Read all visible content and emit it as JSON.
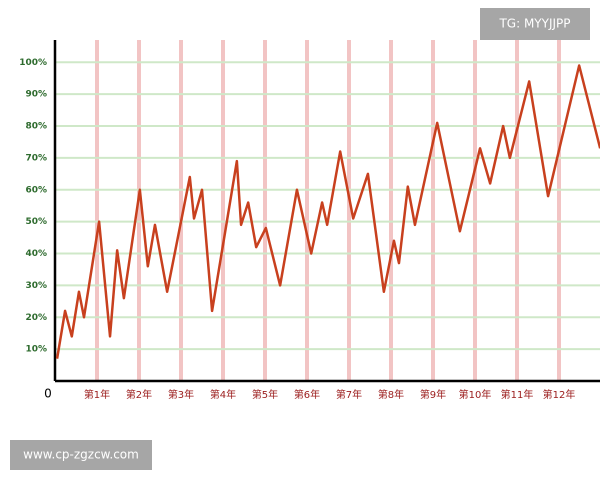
{
  "chart_data": {
    "type": "line",
    "annotations": [
      "TG: MYYJJPP",
      "www.cp-zgzcw.com"
    ],
    "x": [
      0.05,
      0.24,
      0.4,
      0.57,
      0.69,
      1.05,
      1.31,
      1.48,
      1.64,
      2.02,
      2.21,
      2.38,
      2.67,
      3.21,
      3.31,
      3.5,
      3.74,
      4.33,
      4.43,
      4.6,
      4.79,
      5.02,
      5.36,
      5.76,
      6.1,
      6.36,
      6.48,
      6.79,
      7.1,
      7.45,
      7.83,
      8.07,
      8.19,
      8.4,
      8.57,
      9.1,
      9.64,
      10.12,
      10.36,
      10.67,
      10.83,
      11.29,
      11.74,
      12.48,
      12.98
    ],
    "series": [
      {
        "color": "#c8401e",
        "values": [
          7,
          22,
          14,
          28,
          20,
          50,
          14,
          41,
          26,
          60,
          36,
          49,
          28,
          64,
          51,
          60,
          22,
          69,
          49,
          56,
          42,
          48,
          30,
          60,
          40,
          56,
          49,
          72,
          51,
          65,
          28,
          44,
          37,
          61,
          49,
          81,
          47,
          73,
          62,
          80,
          70,
          94,
          58,
          99,
          73
        ]
      }
    ],
    "xlim": [
      0,
      13
    ],
    "xticks": [
      {
        "value": 1,
        "label": "第1年"
      },
      {
        "value": 2,
        "label": "第2年"
      },
      {
        "value": 3,
        "label": "第3年"
      },
      {
        "value": 4,
        "label": "第4年"
      },
      {
        "value": 5,
        "label": "第5年"
      },
      {
        "value": 6,
        "label": "第6年"
      },
      {
        "value": 7,
        "label": "第7年"
      },
      {
        "value": 8,
        "label": "第8年"
      },
      {
        "value": 9,
        "label": "第9年"
      },
      {
        "value": 10,
        "label": "第10年"
      },
      {
        "value": 11,
        "label": "第11年"
      },
      {
        "value": 12,
        "label": "第12年"
      }
    ],
    "ylim": [
      0,
      107
    ],
    "yticks": [
      0,
      {
        "value": 10,
        "label": "10%"
      },
      {
        "value": 20,
        "label": "20%"
      },
      {
        "value": 30,
        "label": "30%"
      },
      {
        "value": 40,
        "label": "40%"
      },
      {
        "value": 50,
        "label": "50%"
      },
      {
        "value": 60,
        "label": "60%"
      },
      {
        "value": 70,
        "label": "70%"
      },
      {
        "value": 80,
        "label": "80%"
      },
      {
        "value": 90,
        "label": "90%"
      },
      {
        "value": 100,
        "label": "100%"
      }
    ],
    "grid": true
  }
}
